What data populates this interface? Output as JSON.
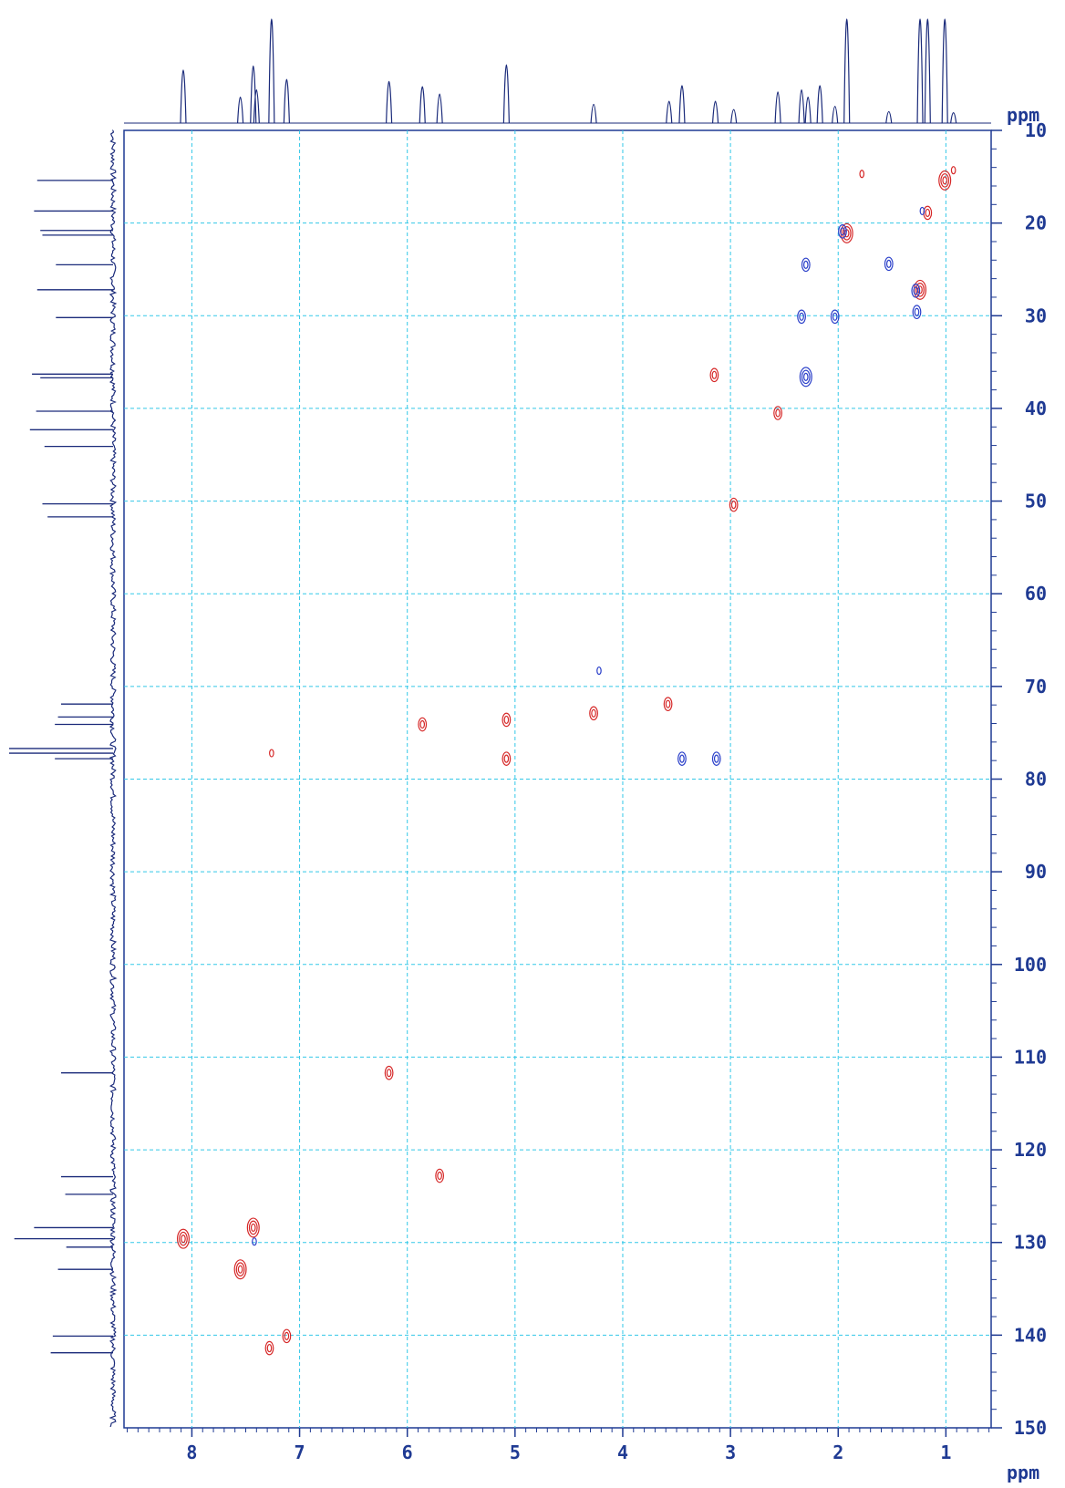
{
  "chart_data": {
    "type": "scatter",
    "title": "",
    "xlabel": "ppm",
    "ylabel": "ppm",
    "xlim": [
      8.63,
      0.58
    ],
    "ylim": [
      10,
      150
    ],
    "x_ticks": [
      8,
      7,
      6,
      5,
      4,
      3,
      2,
      1
    ],
    "y_ticks": [
      10,
      20,
      30,
      40,
      50,
      60,
      70,
      80,
      90,
      100,
      110,
      120,
      130,
      140,
      150
    ],
    "grid": true,
    "colors": {
      "axis": "#1f3a93",
      "grid": "#33c8e8",
      "positive": "#d62828",
      "negative": "#2a3fc9",
      "projection": "#1a2a7a"
    },
    "projection_1h": [
      {
        "x": 8.08,
        "h": 0.51
      },
      {
        "x": 7.55,
        "h": 0.25
      },
      {
        "x": 7.43,
        "h": 0.55
      },
      {
        "x": 7.4,
        "h": 0.32
      },
      {
        "x": 7.26,
        "h": 1.0
      },
      {
        "x": 7.12,
        "h": 0.42
      },
      {
        "x": 6.17,
        "h": 0.4
      },
      {
        "x": 5.86,
        "h": 0.35
      },
      {
        "x": 5.7,
        "h": 0.28
      },
      {
        "x": 5.08,
        "h": 0.56
      },
      {
        "x": 4.27,
        "h": 0.18
      },
      {
        "x": 3.57,
        "h": 0.21
      },
      {
        "x": 3.45,
        "h": 0.36
      },
      {
        "x": 3.14,
        "h": 0.21
      },
      {
        "x": 2.97,
        "h": 0.13
      },
      {
        "x": 2.56,
        "h": 0.3
      },
      {
        "x": 2.34,
        "h": 0.32
      },
      {
        "x": 2.28,
        "h": 0.25
      },
      {
        "x": 2.17,
        "h": 0.36
      },
      {
        "x": 2.03,
        "h": 0.16
      },
      {
        "x": 1.92,
        "h": 1.0
      },
      {
        "x": 1.53,
        "h": 0.11
      },
      {
        "x": 1.24,
        "h": 1.0
      },
      {
        "x": 1.17,
        "h": 1.0
      },
      {
        "x": 1.01,
        "h": 1.0
      },
      {
        "x": 0.93,
        "h": 0.1
      }
    ],
    "projection_13c": [
      {
        "y": 15.4,
        "h": 0.73
      },
      {
        "y": 18.7,
        "h": 0.76
      },
      {
        "y": 20.8,
        "h": 0.7
      },
      {
        "y": 21.3,
        "h": 0.68
      },
      {
        "y": 24.5,
        "h": 0.55
      },
      {
        "y": 27.2,
        "h": 0.73
      },
      {
        "y": 30.2,
        "h": 0.55
      },
      {
        "y": 36.3,
        "h": 0.78
      },
      {
        "y": 36.7,
        "h": 0.7
      },
      {
        "y": 40.3,
        "h": 0.74
      },
      {
        "y": 42.3,
        "h": 0.8
      },
      {
        "y": 44.1,
        "h": 0.66
      },
      {
        "y": 50.3,
        "h": 0.68
      },
      {
        "y": 51.7,
        "h": 0.63
      },
      {
        "y": 71.9,
        "h": 0.5
      },
      {
        "y": 73.3,
        "h": 0.53
      },
      {
        "y": 74.1,
        "h": 0.56
      },
      {
        "y": 76.7,
        "h": 1.0
      },
      {
        "y": 77.2,
        "h": 1.0
      },
      {
        "y": 77.8,
        "h": 0.56
      },
      {
        "y": 111.7,
        "h": 0.5
      },
      {
        "y": 122.9,
        "h": 0.5
      },
      {
        "y": 124.8,
        "h": 0.46
      },
      {
        "y": 128.4,
        "h": 0.76
      },
      {
        "y": 129.6,
        "h": 0.95
      },
      {
        "y": 130.5,
        "h": 0.45
      },
      {
        "y": 132.9,
        "h": 0.53
      },
      {
        "y": 140.1,
        "h": 0.58
      },
      {
        "y": 141.9,
        "h": 0.6
      }
    ],
    "series": [
      {
        "phase": "positive",
        "points": [
          {
            "x": 8.08,
            "y": 129.6,
            "r": 3
          },
          {
            "x": 7.43,
            "y": 128.4,
            "r": 3
          },
          {
            "x": 7.55,
            "y": 132.9,
            "r": 3
          },
          {
            "x": 7.28,
            "y": 141.4,
            "r": 2
          },
          {
            "x": 7.12,
            "y": 140.1,
            "r": 2
          },
          {
            "x": 7.26,
            "y": 77.2,
            "r": 1
          },
          {
            "x": 6.17,
            "y": 111.7,
            "r": 2
          },
          {
            "x": 5.7,
            "y": 122.8,
            "r": 2
          },
          {
            "x": 5.86,
            "y": 74.1,
            "r": 2
          },
          {
            "x": 5.08,
            "y": 73.6,
            "r": 2
          },
          {
            "x": 5.08,
            "y": 77.8,
            "r": 2
          },
          {
            "x": 4.27,
            "y": 72.9,
            "r": 2
          },
          {
            "x": 3.58,
            "y": 71.9,
            "r": 2
          },
          {
            "x": 3.15,
            "y": 36.4,
            "r": 2
          },
          {
            "x": 2.97,
            "y": 50.4,
            "r": 2
          },
          {
            "x": 2.56,
            "y": 40.5,
            "r": 2
          },
          {
            "x": 1.92,
            "y": 21.1,
            "r": 3
          },
          {
            "x": 1.78,
            "y": 14.7,
            "r": 1
          },
          {
            "x": 1.24,
            "y": 27.2,
            "r": 3
          },
          {
            "x": 1.17,
            "y": 18.9,
            "r": 2
          },
          {
            "x": 1.01,
            "y": 15.4,
            "r": 3
          },
          {
            "x": 0.93,
            "y": 14.3,
            "r": 1
          }
        ]
      },
      {
        "phase": "negative",
        "points": [
          {
            "x": 2.3,
            "y": 24.5,
            "r": 2
          },
          {
            "x": 2.34,
            "y": 30.1,
            "r": 2
          },
          {
            "x": 2.03,
            "y": 30.1,
            "r": 2
          },
          {
            "x": 2.3,
            "y": 36.6,
            "r": 3
          },
          {
            "x": 1.96,
            "y": 20.9,
            "r": 2
          },
          {
            "x": 1.53,
            "y": 24.4,
            "r": 2
          },
          {
            "x": 1.28,
            "y": 27.3,
            "r": 2
          },
          {
            "x": 1.27,
            "y": 29.6,
            "r": 2
          },
          {
            "x": 1.22,
            "y": 18.7,
            "r": 1
          },
          {
            "x": 4.22,
            "y": 68.3,
            "r": 1
          },
          {
            "x": 3.45,
            "y": 77.8,
            "r": 2
          },
          {
            "x": 3.13,
            "y": 77.8,
            "r": 2
          },
          {
            "x": 7.42,
            "y": 129.9,
            "r": 1
          }
        ]
      }
    ]
  }
}
